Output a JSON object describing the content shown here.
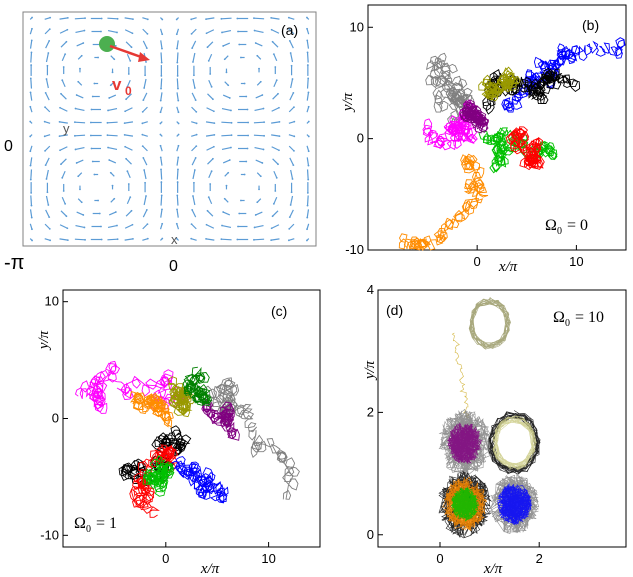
{
  "chart_data": [
    {
      "panel": "(a)",
      "type": "vector-field",
      "labels": {
        "velocity": "v",
        "velocity_sub": "0",
        "x_axis": "x",
        "y_axis": "y"
      },
      "ticks": {
        "y_zero": "0",
        "y_minus_pi": "-π",
        "x_zero": "0"
      },
      "particle_color": "#4caf50",
      "arrow_color": "#e53935",
      "field_color": "#5b9bd5"
    },
    {
      "panel": "(b)",
      "type": "line",
      "omega_symbol": "Ω",
      "omega_sub": "0",
      "omega_value": "= 0",
      "xlabel": "x/π",
      "ylabel": "y/π",
      "xlim": [
        -11,
        15
      ],
      "ylim": [
        -10,
        12
      ],
      "xticks": [
        0,
        10
      ],
      "xtick_labels": [
        "0",
        "10"
      ],
      "yticks": [
        -10,
        0,
        10
      ],
      "ytick_labels": [
        "-10",
        "0",
        "10"
      ],
      "series": [
        {
          "color": "#808080",
          "start": [
            -2,
            1.5
          ],
          "steps": 55,
          "step": 0.9,
          "drift": [
            -0.15,
            0.18
          ],
          "seed": 11
        },
        {
          "color": "#ff8c00",
          "start": [
            -1,
            -2
          ],
          "steps": 55,
          "step": 0.7,
          "drift": [
            -0.1,
            -0.14
          ],
          "seed": 23
        },
        {
          "color": "#ff00ff",
          "start": [
            0,
            2
          ],
          "steps": 60,
          "step": 0.6,
          "drift": [
            -0.05,
            -0.02
          ],
          "seed": 37
        },
        {
          "color": "#0000ff",
          "start": [
            3,
            3
          ],
          "steps": 70,
          "step": 0.7,
          "drift": [
            0.13,
            0.02
          ],
          "seed": 41
        },
        {
          "color": "#000000",
          "start": [
            1,
            3
          ],
          "steps": 80,
          "step": 0.6,
          "drift": [
            0.05,
            0.02
          ],
          "seed": 53
        },
        {
          "color": "#00c000",
          "start": [
            1,
            0
          ],
          "steps": 60,
          "step": 0.6,
          "drift": [
            0.06,
            -0.04
          ],
          "seed": 67
        },
        {
          "color": "#ff0000",
          "start": [
            4,
            -1
          ],
          "steps": 50,
          "step": 0.6,
          "drift": [
            0.07,
            -0.03
          ],
          "seed": 71
        },
        {
          "color": "#800080",
          "start": [
            -1,
            3
          ],
          "steps": 50,
          "step": 0.5,
          "drift": [
            0.0,
            0.02
          ],
          "seed": 83
        },
        {
          "color": "#999900",
          "start": [
            1,
            5
          ],
          "steps": 45,
          "step": 0.55,
          "drift": [
            0.04,
            0.03
          ],
          "seed": 97
        }
      ]
    },
    {
      "panel": "(c)",
      "type": "line",
      "omega_symbol": "Ω",
      "omega_sub": "0",
      "omega_value": "= 1",
      "xlabel": "x/π",
      "ylabel": "y/π",
      "xlim": [
        -10,
        15
      ],
      "ylim": [
        -11,
        11
      ],
      "xticks": [
        0,
        10
      ],
      "xtick_labels": [
        "0",
        "10"
      ],
      "yticks": [
        -10,
        0,
        10
      ],
      "ytick_labels": [
        "-10",
        "0",
        "10"
      ],
      "series": [
        {
          "color": "#ff00ff",
          "start": [
            2,
            2
          ],
          "steps": 55,
          "step": 0.8,
          "drift": [
            -0.2,
            0.12
          ],
          "seed": 5
        },
        {
          "color": "#808080",
          "start": [
            6,
            2
          ],
          "steps": 55,
          "step": 0.8,
          "drift": [
            0.11,
            -0.17
          ],
          "seed": 9
        },
        {
          "color": "#000000",
          "start": [
            1,
            -1
          ],
          "steps": 60,
          "step": 0.7,
          "drift": [
            -0.05,
            -0.06
          ],
          "seed": 13
        },
        {
          "color": "#ff0000",
          "start": [
            0,
            -3
          ],
          "steps": 50,
          "step": 0.6,
          "drift": [
            0.02,
            -0.04
          ],
          "seed": 17
        },
        {
          "color": "#0000ff",
          "start": [
            1,
            -4
          ],
          "steps": 45,
          "step": 0.55,
          "drift": [
            0.04,
            -0.01
          ],
          "seed": 19
        },
        {
          "color": "#00c000",
          "start": [
            -1,
            -4
          ],
          "steps": 40,
          "step": 0.5,
          "drift": [
            0.0,
            0.0
          ],
          "seed": 29
        },
        {
          "color": "#999900",
          "start": [
            2,
            1
          ],
          "steps": 40,
          "step": 0.55,
          "drift": [
            0.04,
            0.04
          ],
          "seed": 31
        },
        {
          "color": "#ff8c00",
          "start": [
            0,
            0
          ],
          "steps": 40,
          "step": 0.5,
          "drift": [
            0.0,
            0.0
          ],
          "seed": 43
        },
        {
          "color": "#800080",
          "start": [
            4,
            1
          ],
          "steps": 35,
          "step": 0.45,
          "drift": [
            0.0,
            0.0
          ],
          "seed": 47
        },
        {
          "color": "#008000",
          "start": [
            3,
            4
          ],
          "steps": 35,
          "step": 0.45,
          "drift": [
            0.0,
            0.0
          ],
          "seed": 59
        }
      ]
    },
    {
      "panel": "(d)",
      "type": "line",
      "omega_symbol": "Ω",
      "omega_sub": "0",
      "omega_value": "= 10",
      "xlabel": "x/π",
      "ylabel": "y/π",
      "xlim": [
        -1.25,
        3.75
      ],
      "ylim": [
        -0.2,
        4
      ],
      "xticks": [
        0,
        2
      ],
      "xtick_labels": [
        "0",
        "2"
      ],
      "yticks": [
        0,
        2,
        4
      ],
      "ytick_labels": [
        "0",
        "2",
        "4"
      ],
      "series": [
        {
          "color": "#999966",
          "orbit_center": [
            1,
            3.45
          ],
          "radius": 0.38,
          "cells": [
            [
              1.5,
              1.5
            ]
          ],
          "kind": "ring"
        },
        {
          "color": "#ccaa22",
          "kind": "link",
          "from": [
            0.3,
            3.3
          ],
          "to": [
            0.55,
            1.9
          ]
        },
        {
          "color": "#808080",
          "kind": "cloud",
          "center": [
            0.5,
            1.5
          ],
          "radius": 0.55
        },
        {
          "color": "#800080",
          "kind": "cloud",
          "center": [
            0.5,
            1.5
          ],
          "radius": 0.35
        },
        {
          "color": "#000000",
          "kind": "ring",
          "center": [
            1.5,
            1.5
          ],
          "radius": 0.48
        },
        {
          "color": "#cccc88",
          "kind": "ring",
          "center": [
            1.5,
            1.5
          ],
          "radius": 0.4
        },
        {
          "color": "#000000",
          "kind": "cloud",
          "center": [
            0.5,
            0.5
          ],
          "radius": 0.55
        },
        {
          "color": "#ff8c00",
          "kind": "cloud",
          "center": [
            0.5,
            0.5
          ],
          "radius": 0.45
        },
        {
          "color": "#00c000",
          "kind": "cloud",
          "center": [
            0.5,
            0.5
          ],
          "radius": 0.28
        },
        {
          "color": "#808080",
          "kind": "cloud",
          "center": [
            1.5,
            0.5
          ],
          "radius": 0.5
        },
        {
          "color": "#0000ff",
          "kind": "cloud",
          "center": [
            1.5,
            0.5
          ],
          "radius": 0.35
        }
      ]
    }
  ]
}
